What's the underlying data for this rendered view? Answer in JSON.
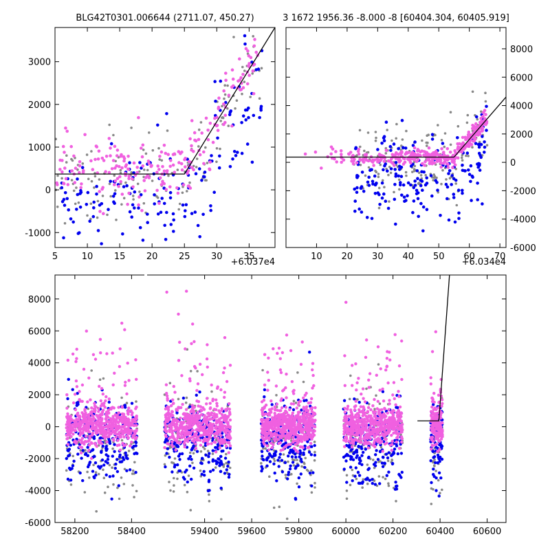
{
  "chart_data": [
    {
      "type": "scatter",
      "title": "BLG42T0301.006644 (2711.07, 450.27)",
      "x_offset_label": "+6.037e4",
      "xlim": [
        5,
        39
      ],
      "ylim": [
        -1350,
        3800
      ],
      "x_ticks": [
        5,
        10,
        15,
        20,
        25,
        30,
        35
      ],
      "y_ticks": [
        -1000,
        0,
        1000,
        2000,
        3000
      ],
      "y_axis_side": "left",
      "fit_line": [
        [
          5,
          370
        ],
        [
          25,
          370
        ],
        [
          39,
          3800
        ]
      ],
      "colors": {
        "gray": "#888888",
        "blue": "#0000ee",
        "pink": "#f060e0",
        "line": "#000000"
      }
    },
    {
      "type": "scatter",
      "title": "3 1672 1956.36 -8.000 -8 [60404.304, 60405.919]",
      "x_offset_label": "+6.034e4",
      "xlim": [
        0,
        72
      ],
      "ylim": [
        -6000,
        9500
      ],
      "x_ticks": [
        10,
        20,
        30,
        40,
        50,
        60,
        70
      ],
      "y_ticks": [
        -6000,
        -4000,
        -2000,
        0,
        2000,
        4000,
        6000,
        8000
      ],
      "y_axis_side": "right",
      "fit_line": [
        [
          0,
          370
        ],
        [
          55,
          370
        ],
        [
          72,
          4600
        ]
      ],
      "colors": {
        "gray": "#888888",
        "blue": "#0000ee",
        "pink": "#f060e0",
        "line": "#000000"
      }
    },
    {
      "type": "scatter",
      "title": "",
      "xlim": [
        58130,
        60680
      ],
      "ylim": [
        -6000,
        9500
      ],
      "x_ticks": [
        58200,
        58400,
        59400,
        59600,
        59800,
        60000,
        60200,
        60400,
        60600
      ],
      "y_ticks": [
        -6000,
        -4000,
        -2000,
        0,
        2000,
        4000,
        6000,
        8000
      ],
      "broken_axis": true,
      "seasons": [
        [
          58170,
          58420
        ],
        [
          59230,
          59510
        ],
        [
          59640,
          59870
        ],
        [
          59990,
          60240
        ],
        [
          60360,
          60410
        ]
      ],
      "fit_line": [
        [
          60304,
          370
        ],
        [
          60395,
          370
        ],
        [
          60440,
          9500
        ]
      ],
      "colors": {
        "gray": "#888888",
        "blue": "#0000ee",
        "pink": "#f060e0",
        "line": "#000000"
      }
    }
  ]
}
